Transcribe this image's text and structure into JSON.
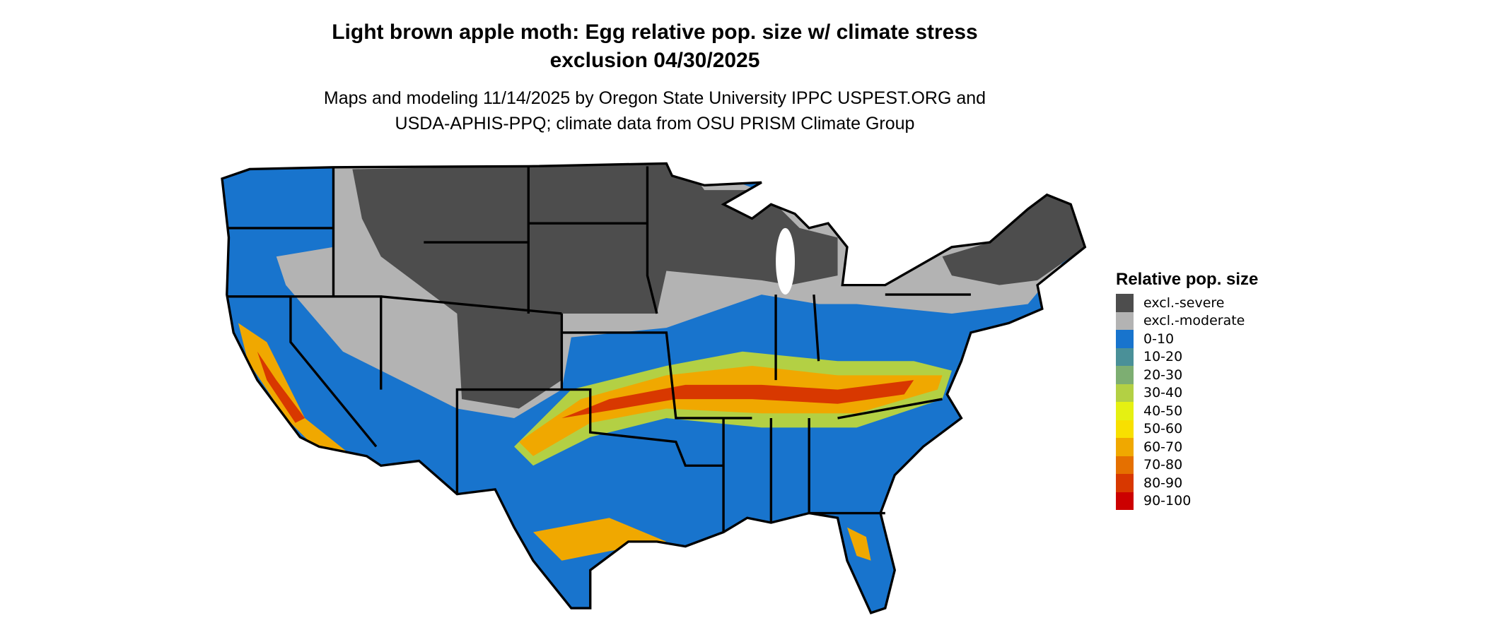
{
  "title": {
    "line1": "Light brown apple moth: Egg relative pop. size w/ climate stress",
    "line2": "exclusion 04/30/2025"
  },
  "subtitle": {
    "line1": "Maps and modeling 11/14/2025 by Oregon State University IPPC USPEST.ORG and",
    "line2": "USDA-APHIS-PPQ; climate data from OSU PRISM Climate Group"
  },
  "legend": {
    "title": "Relative pop. size",
    "items": [
      {
        "label": "excl.-severe",
        "color": "#4d4d4d"
      },
      {
        "label": "excl.-moderate",
        "color": "#b3b3b3"
      },
      {
        "label": "0-10",
        "color": "#1874cd"
      },
      {
        "label": "10-20",
        "color": "#4a9098"
      },
      {
        "label": "20-30",
        "color": "#7dae72"
      },
      {
        "label": "30-40",
        "color": "#b3d044"
      },
      {
        "label": "40-50",
        "color": "#e5f012"
      },
      {
        "label": "50-60",
        "color": "#f8e000"
      },
      {
        "label": "60-70",
        "color": "#f0a800"
      },
      {
        "label": "70-80",
        "color": "#e57000"
      },
      {
        "label": "80-90",
        "color": "#d83800"
      },
      {
        "label": "90-100",
        "color": "#cc0000"
      }
    ]
  }
}
